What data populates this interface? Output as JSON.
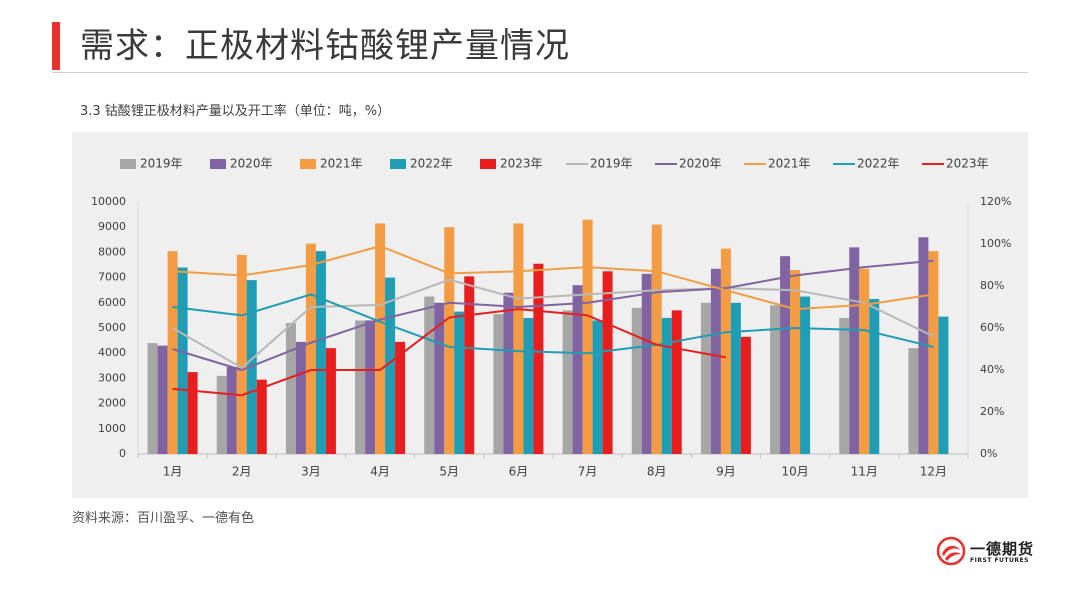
{
  "page": {
    "title": "需求：正极材料钴酸锂产量情况",
    "chart_caption": "3.3 钴酸锂正极材料产量以及开工率（单位：吨，%）",
    "source": "资料来源：百川盈孚、一德有色"
  },
  "logo": {
    "name": "一德期货",
    "sub": "FIRST FUTURES"
  },
  "chart_data": {
    "type": "bar",
    "categories": [
      "1月",
      "2月",
      "3月",
      "4月",
      "5月",
      "6月",
      "7月",
      "8月",
      "9月",
      "10月",
      "11月",
      "12月"
    ],
    "y_left": {
      "min": 0,
      "max": 10000,
      "step": 1000,
      "ticks": [
        "0",
        "1000",
        "2000",
        "3000",
        "4000",
        "5000",
        "6000",
        "7000",
        "8000",
        "9000",
        "10000"
      ]
    },
    "y_right": {
      "min": 0,
      "max": 120,
      "step": 20,
      "ticks": [
        "0%",
        "20%",
        "40%",
        "60%",
        "80%",
        "100%",
        "120%"
      ]
    },
    "grid": false,
    "legend_position": "top",
    "series": [
      {
        "name": "2019年",
        "kind": "bar",
        "axis": "left",
        "color": "#a6a6a6",
        "values": [
          4400,
          3100,
          5200,
          5300,
          6250,
          5550,
          5700,
          5800,
          6000,
          5900,
          5400,
          4200
        ]
      },
      {
        "name": "2020年",
        "kind": "bar",
        "axis": "left",
        "color": "#8064a2",
        "values": [
          4300,
          3450,
          4450,
          5300,
          6000,
          6400,
          6700,
          7150,
          7350,
          7850,
          8200,
          8600
        ]
      },
      {
        "name": "2021年",
        "kind": "bar",
        "axis": "left",
        "color": "#f39c44",
        "values": [
          8050,
          7900,
          8350,
          9150,
          9000,
          9150,
          9300,
          9100,
          8150,
          7300,
          7350,
          8050
        ]
      },
      {
        "name": "2022年",
        "kind": "bar",
        "axis": "left",
        "color": "#1f9db5",
        "values": [
          7400,
          6900,
          8050,
          7000,
          5650,
          5400,
          5300,
          5400,
          6000,
          6250,
          6150,
          5450
        ]
      },
      {
        "name": "2023年",
        "kind": "bar",
        "axis": "left",
        "color": "#e81e1e",
        "values": [
          3250,
          2950,
          4200,
          4450,
          7050,
          7550,
          7250,
          5700,
          4650,
          null,
          null,
          null
        ]
      },
      {
        "name": "2019年",
        "kind": "line",
        "axis": "right",
        "color": "#b8b8b8",
        "values": [
          60,
          41,
          70,
          71,
          83,
          74,
          76,
          78,
          79,
          78,
          72,
          56
        ]
      },
      {
        "name": "2020年",
        "kind": "line",
        "axis": "right",
        "color": "#8064a2",
        "values": [
          50,
          40,
          53,
          64,
          72,
          70,
          72,
          77,
          79,
          85,
          89,
          92
        ]
      },
      {
        "name": "2021年",
        "kind": "line",
        "axis": "right",
        "color": "#f39c44",
        "values": [
          87,
          85,
          90,
          99,
          86,
          87,
          89,
          87,
          78,
          69,
          71,
          76
        ]
      },
      {
        "name": "2022年",
        "kind": "line",
        "axis": "right",
        "color": "#1f9db5",
        "values": [
          70,
          66,
          76,
          63,
          51,
          49,
          48,
          52,
          58,
          60,
          59,
          51
        ]
      },
      {
        "name": "2023年",
        "kind": "line",
        "axis": "right",
        "color": "#e81e1e",
        "values": [
          31,
          28,
          40,
          40,
          65,
          69,
          66,
          52,
          46,
          null,
          null,
          null
        ]
      }
    ]
  }
}
